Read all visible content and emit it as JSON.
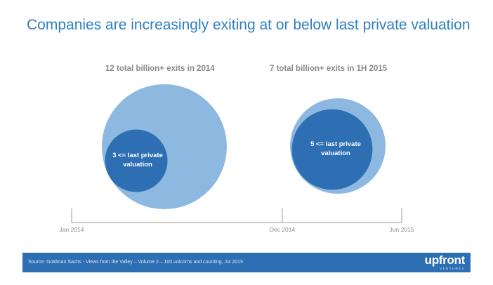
{
  "slide": {
    "title": "Companies are increasingly exiting at or below last private valuation"
  },
  "chart_data": {
    "type": "bubble",
    "title": "Companies are increasingly exiting at or below last private valuation",
    "groups": [
      {
        "heading": "12 total billion+ exits in 2014",
        "period": "2014",
        "total_exits": 12,
        "at_or_below": 3,
        "inner_label": "3 <= last private valuation"
      },
      {
        "heading": "7 total billion+ exits in 1H 2015",
        "period": "1H 2015",
        "total_exits": 7,
        "at_or_below": 5,
        "inner_label": "5 <= last private valuation"
      }
    ],
    "timeline": {
      "ticks": [
        "Jan 2014",
        "Dec 2014",
        "Jun 2015"
      ]
    },
    "colors": {
      "outer": "#8db9e0",
      "inner": "#2d6fb2",
      "axis": "#9a9a9a"
    }
  },
  "footer": {
    "source": "Source: Goldman Sachs - Views from the Valley – Volume 2 – 100 unicorns and counting, Jul 2015",
    "logo": "upfront",
    "logo_sub": "VENTURES"
  },
  "colors": {
    "title": "#2f7fc1",
    "footer_bg": "#2d6fb2"
  }
}
